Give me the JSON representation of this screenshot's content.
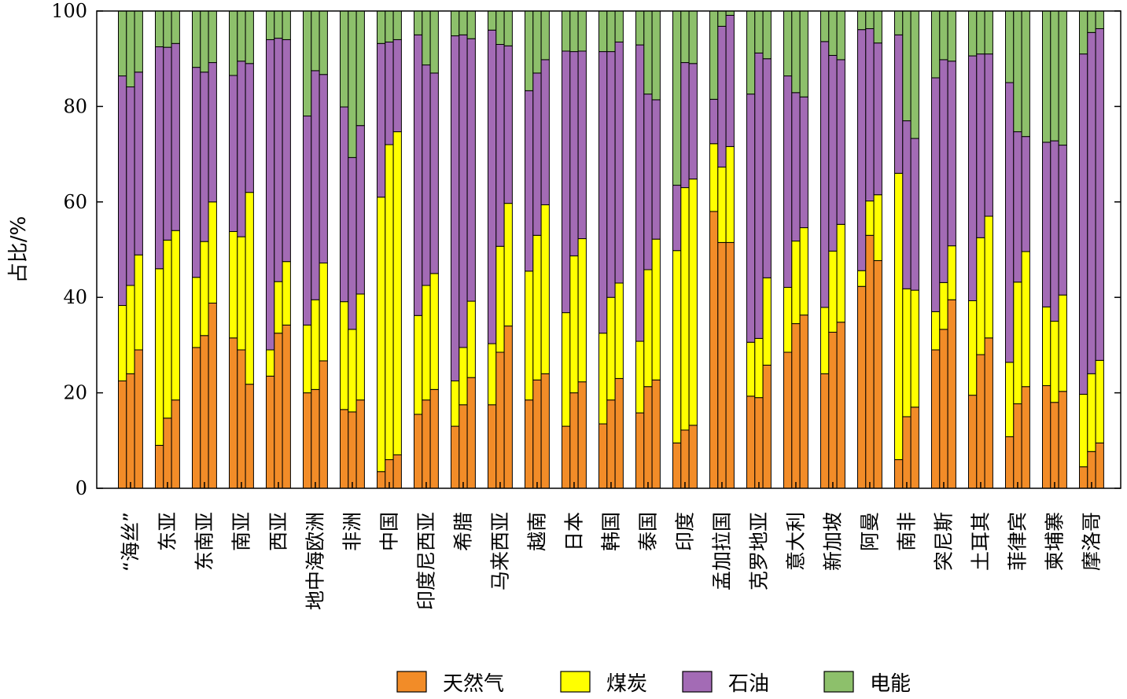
{
  "chart_data": {
    "type": "bar",
    "stacked": true,
    "bars_per_category": 3,
    "ylabel": "占比/%",
    "ylim": [
      0,
      100
    ],
    "yticks": [
      "0",
      "20",
      "40",
      "60",
      "80",
      "100"
    ],
    "legend_position": "bottom",
    "categories": [
      "“海丝”",
      "东亚",
      "东南亚",
      "南亚",
      "西亚",
      "地中海欧洲",
      "非洲",
      "中国",
      "印度尼西亚",
      "希腊",
      "马来西亚",
      "越南",
      "日本",
      "韩国",
      "泰国",
      "印度",
      "孟加拉国",
      "克罗地亚",
      "意大利",
      "新加坡",
      "阿曼",
      "南非",
      "突尼斯",
      "土耳其",
      "菲律宾",
      "柬埔寨",
      "摩洛哥"
    ],
    "series": [
      {
        "name": "天然气",
        "color": "#f28c28",
        "values": [
          [
            22.5,
            24,
            29
          ],
          [
            9,
            14.7,
            18.5
          ],
          [
            29.5,
            32,
            38.8
          ],
          [
            31.5,
            29,
            21.8
          ],
          [
            23.5,
            32.5,
            34.2
          ],
          [
            20,
            20.7,
            26.7
          ],
          [
            16.5,
            16,
            18.5
          ],
          [
            3.5,
            6,
            7
          ],
          [
            15.5,
            18.5,
            20.7
          ],
          [
            13,
            17.5,
            23.2
          ],
          [
            17.5,
            28.5,
            34
          ],
          [
            18.5,
            22.7,
            24
          ],
          [
            13,
            20,
            22.3
          ],
          [
            13.5,
            18.5,
            23
          ],
          [
            15.8,
            21.3,
            22.7
          ],
          [
            9.5,
            12.2,
            13.2
          ],
          [
            58,
            51.5,
            51.5
          ],
          [
            19.3,
            19,
            25.8
          ],
          [
            28.5,
            34.5,
            36.3
          ],
          [
            24,
            32.7,
            34.8
          ],
          [
            42.3,
            53,
            47.7
          ],
          [
            6,
            15,
            17
          ],
          [
            29,
            33.3,
            39.5
          ],
          [
            19.5,
            28,
            31.5
          ],
          [
            10.8,
            17.7,
            21.3
          ],
          [
            21.5,
            18,
            20.3
          ],
          [
            4.5,
            7.7,
            9.5
          ]
        ]
      },
      {
        "name": "煤炭",
        "color": "#ffff00",
        "values": [
          [
            15.8,
            18.5,
            19.9
          ],
          [
            37,
            37.3,
            35.5
          ],
          [
            14.7,
            19.7,
            21.2
          ],
          [
            22.3,
            23.7,
            40.2
          ],
          [
            5.5,
            10.8,
            13.3
          ],
          [
            14.2,
            18.8,
            20.5
          ],
          [
            22.6,
            17.3,
            22.2
          ],
          [
            57.5,
            66,
            67.7
          ],
          [
            20.7,
            24,
            24.3
          ],
          [
            9.5,
            12,
            16
          ],
          [
            12.8,
            22.2,
            25.7
          ],
          [
            27,
            30.3,
            35.4
          ],
          [
            23.8,
            28.7,
            30
          ],
          [
            19,
            21.5,
            20
          ],
          [
            15,
            24.5,
            29.5
          ],
          [
            40.3,
            50.8,
            51.6
          ],
          [
            14.2,
            15.8,
            20.1
          ],
          [
            11.3,
            12.4,
            18.3
          ],
          [
            13.6,
            17.3,
            18.3
          ],
          [
            13.9,
            17,
            20.5
          ],
          [
            3.3,
            7.2,
            13.8
          ],
          [
            60,
            26.8,
            24.5
          ],
          [
            8,
            9.8,
            11.3
          ],
          [
            19.8,
            24.5,
            25.5
          ],
          [
            15.6,
            25.5,
            28.3
          ],
          [
            16.5,
            17,
            20.2
          ],
          [
            15.2,
            16.3,
            17.3
          ]
        ]
      },
      {
        "name": "石油",
        "color": "#a36bb5",
        "values": [
          [
            48.1,
            41.6,
            38.3
          ],
          [
            46.5,
            40.4,
            39.2
          ],
          [
            44,
            35.5,
            29.2
          ],
          [
            32.7,
            36.8,
            27
          ],
          [
            65,
            51,
            46.5
          ],
          [
            43.8,
            48,
            39.5
          ],
          [
            40.8,
            36,
            35.3
          ],
          [
            32.2,
            21.5,
            19.3
          ],
          [
            58.8,
            46.2,
            42
          ],
          [
            72.3,
            65.5,
            55
          ],
          [
            65.7,
            42.3,
            33
          ],
          [
            37.8,
            34,
            30.4
          ],
          [
            54.8,
            42.8,
            39.3
          ],
          [
            59,
            51.5,
            50.5
          ],
          [
            62.1,
            36.8,
            29.2
          ],
          [
            13.7,
            26.2,
            24.2
          ],
          [
            9.3,
            29.5,
            27.5
          ],
          [
            52,
            59.8,
            45.9
          ],
          [
            44.3,
            31.1,
            27.4
          ],
          [
            55.7,
            41,
            34.5
          ],
          [
            50.5,
            36.1,
            31.8
          ],
          [
            29,
            35.2,
            31.8
          ],
          [
            49,
            46.7,
            38.7
          ],
          [
            51.3,
            38.5,
            34
          ],
          [
            58.6,
            31.5,
            24.1
          ],
          [
            34.5,
            37.8,
            31.4
          ],
          [
            71.3,
            71.5,
            69.5
          ]
        ]
      },
      {
        "name": "电能",
        "color": "#8dc06b",
        "values": [
          [
            13.6,
            15.9,
            12.8
          ],
          [
            7.5,
            7.6,
            6.8
          ],
          [
            11.8,
            12.8,
            10.8
          ],
          [
            13.5,
            10.5,
            11
          ],
          [
            6,
            5.7,
            6
          ],
          [
            22,
            12.5,
            13.3
          ],
          [
            20.1,
            30.7,
            24
          ],
          [
            6.8,
            6.5,
            6
          ],
          [
            5,
            11.3,
            13
          ],
          [
            5.2,
            5,
            5.8
          ],
          [
            4,
            7,
            7.3
          ],
          [
            16.7,
            13,
            10.2
          ],
          [
            8.4,
            8.5,
            8.4
          ],
          [
            8.5,
            8.5,
            6.5
          ],
          [
            7.1,
            17.4,
            18.6
          ],
          [
            36.5,
            10.8,
            11
          ],
          [
            18.5,
            3.2,
            0.9
          ],
          [
            17.4,
            8.8,
            10
          ],
          [
            13.6,
            17.1,
            18
          ],
          [
            6.4,
            9.3,
            10.2
          ],
          [
            3.9,
            3.7,
            6.7
          ],
          [
            5,
            23,
            26.7
          ],
          [
            14,
            10.2,
            10.5
          ],
          [
            9.4,
            9,
            9
          ],
          [
            15,
            25.3,
            26.3
          ],
          [
            27.5,
            27.2,
            28.1
          ],
          [
            9,
            4.5,
            3.7
          ]
        ]
      }
    ]
  }
}
